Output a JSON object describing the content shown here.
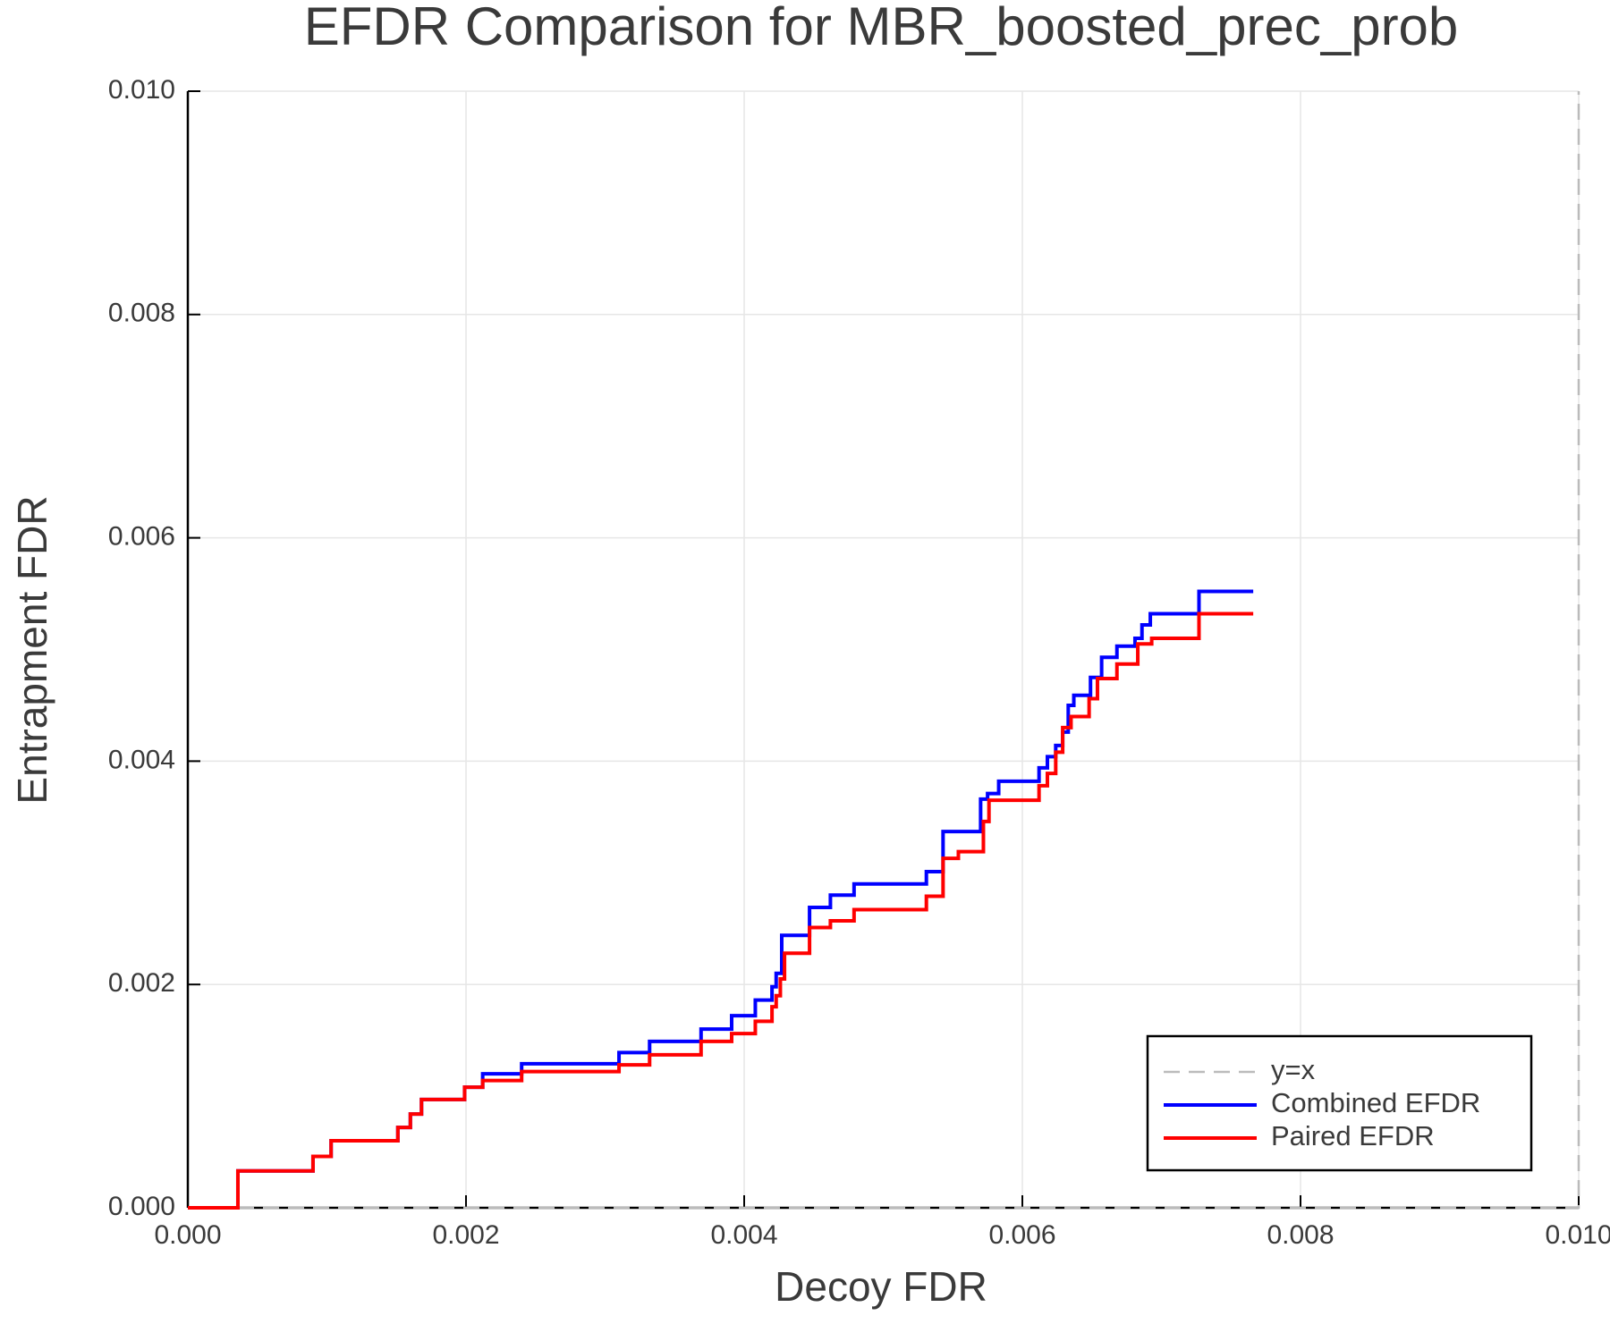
{
  "chart_data": {
    "type": "line",
    "drawstyle": "steps-post",
    "title": "EFDR Comparison for MBR_boosted_prec_prob",
    "xlabel": "Decoy FDR",
    "ylabel": "Entrapment FDR",
    "xlim": [
      0,
      0.01
    ],
    "ylim": [
      0,
      0.01
    ],
    "xticks": [
      {
        "value": 0,
        "label": "0.000"
      },
      {
        "value": 0.002,
        "label": "0.002"
      },
      {
        "value": 0.004,
        "label": "0.004"
      },
      {
        "value": 0.006,
        "label": "0.006"
      },
      {
        "value": 0.008,
        "label": "0.008"
      },
      {
        "value": 0.01,
        "label": "0.010"
      }
    ],
    "yticks": [
      {
        "value": 0,
        "label": "0.000"
      },
      {
        "value": 0.002,
        "label": "0.002"
      },
      {
        "value": 0.004,
        "label": "0.004"
      },
      {
        "value": 0.006,
        "label": "0.006"
      },
      {
        "value": 0.008,
        "label": "0.008"
      },
      {
        "value": 0.01,
        "label": "0.010"
      }
    ],
    "grid": true,
    "legend": "lower right",
    "series": [
      {
        "name": "y=x",
        "color": "#bbbbbb",
        "dash": true,
        "x": [
          0,
          0.01
        ],
        "values": [
          0,
          0.01
        ]
      },
      {
        "name": "Combined EFDR",
        "color": "#0000ff",
        "x": [
          0,
          0.00036,
          0.0009,
          0.00103,
          0.00151,
          0.0016,
          0.00168,
          0.00199,
          0.00212,
          0.0024,
          0.0031,
          0.00332,
          0.00369,
          0.00391,
          0.00408,
          0.0042,
          0.00423,
          0.00427,
          0.00447,
          0.00462,
          0.00479,
          0.00531,
          0.00543,
          0.0057,
          0.00575,
          0.00583,
          0.00612,
          0.00618,
          0.00624,
          0.00629,
          0.00633,
          0.00637,
          0.00649,
          0.00657,
          0.00668,
          0.00681,
          0.00686,
          0.00692,
          0.00727,
          0.00766
        ],
        "values": [
          0,
          0.00033,
          0.00046,
          0.0006,
          0.00072,
          0.00084,
          0.00097,
          0.00108,
          0.0012,
          0.00129,
          0.00139,
          0.00149,
          0.0016,
          0.00172,
          0.00186,
          0.00198,
          0.0021,
          0.00244,
          0.00269,
          0.0028,
          0.0029,
          0.00301,
          0.00337,
          0.00366,
          0.00371,
          0.00382,
          0.00394,
          0.00404,
          0.00414,
          0.00426,
          0.0045,
          0.00459,
          0.00475,
          0.00493,
          0.00503,
          0.0051,
          0.00522,
          0.00532,
          0.00552,
          0.00552
        ]
      },
      {
        "name": "Paired EFDR",
        "color": "#ff0000",
        "x": [
          0,
          0.00036,
          0.0009,
          0.00103,
          0.00151,
          0.0016,
          0.00168,
          0.00199,
          0.00212,
          0.0024,
          0.0031,
          0.00332,
          0.00369,
          0.00391,
          0.00408,
          0.0042,
          0.00423,
          0.00426,
          0.00429,
          0.00447,
          0.00462,
          0.00479,
          0.00531,
          0.00543,
          0.00554,
          0.00572,
          0.00576,
          0.00612,
          0.00618,
          0.00624,
          0.00629,
          0.00635,
          0.00648,
          0.00654,
          0.00668,
          0.00683,
          0.00693,
          0.00727,
          0.00766
        ],
        "values": [
          0,
          0.00033,
          0.00046,
          0.0006,
          0.00072,
          0.00084,
          0.00097,
          0.00108,
          0.00114,
          0.00122,
          0.00128,
          0.00137,
          0.00149,
          0.00156,
          0.00167,
          0.0018,
          0.0019,
          0.00205,
          0.00228,
          0.00251,
          0.00257,
          0.00267,
          0.00279,
          0.00313,
          0.00319,
          0.00346,
          0.00365,
          0.00378,
          0.00389,
          0.00408,
          0.0043,
          0.0044,
          0.00456,
          0.00474,
          0.00487,
          0.00505,
          0.0051,
          0.00532,
          0.00532
        ]
      }
    ]
  }
}
